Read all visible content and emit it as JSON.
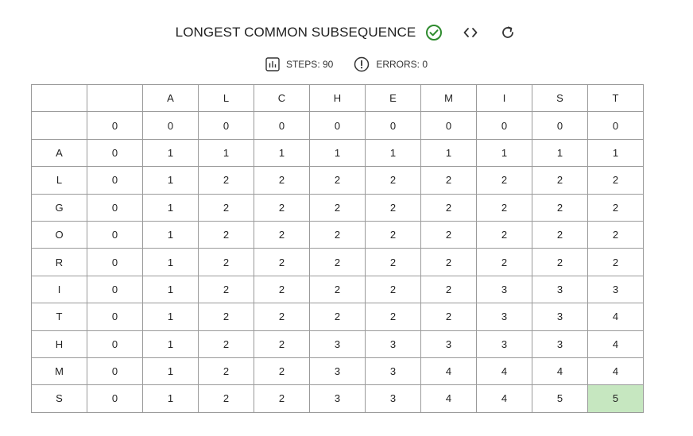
{
  "header": {
    "title": "LONGEST COMMON SUBSEQUENCE"
  },
  "stats": {
    "steps_label": "STEPS: 90",
    "errors_label": "ERRORS: 0"
  },
  "colors": {
    "success": "#2e8b2e",
    "highlight": "#c6e7c0",
    "grid_border": "#9a9a9a"
  },
  "icons": {
    "status": "check-circle-icon",
    "steps": "bar-chart-icon",
    "errors": "exclamation-circle-icon",
    "code": "code-icon",
    "refresh": "refresh-icon"
  },
  "grid": {
    "column_headers": [
      "",
      "",
      "A",
      "L",
      "C",
      "H",
      "E",
      "M",
      "I",
      "S",
      "T"
    ],
    "rows": [
      [
        "",
        "0",
        "0",
        "0",
        "0",
        "0",
        "0",
        "0",
        "0",
        "0",
        "0"
      ],
      [
        "A",
        "0",
        "1",
        "1",
        "1",
        "1",
        "1",
        "1",
        "1",
        "1",
        "1"
      ],
      [
        "L",
        "0",
        "1",
        "2",
        "2",
        "2",
        "2",
        "2",
        "2",
        "2",
        "2"
      ],
      [
        "G",
        "0",
        "1",
        "2",
        "2",
        "2",
        "2",
        "2",
        "2",
        "2",
        "2"
      ],
      [
        "O",
        "0",
        "1",
        "2",
        "2",
        "2",
        "2",
        "2",
        "2",
        "2",
        "2"
      ],
      [
        "R",
        "0",
        "1",
        "2",
        "2",
        "2",
        "2",
        "2",
        "2",
        "2",
        "2"
      ],
      [
        "I",
        "0",
        "1",
        "2",
        "2",
        "2",
        "2",
        "2",
        "3",
        "3",
        "3"
      ],
      [
        "T",
        "0",
        "1",
        "2",
        "2",
        "2",
        "2",
        "2",
        "3",
        "3",
        "4"
      ],
      [
        "H",
        "0",
        "1",
        "2",
        "2",
        "3",
        "3",
        "3",
        "3",
        "3",
        "4"
      ],
      [
        "M",
        "0",
        "1",
        "2",
        "2",
        "3",
        "3",
        "4",
        "4",
        "4",
        "4"
      ],
      [
        "S",
        "0",
        "1",
        "2",
        "2",
        "3",
        "3",
        "4",
        "4",
        "5",
        "5"
      ]
    ],
    "highlighted_cell": {
      "row": 10,
      "col": 10
    }
  }
}
